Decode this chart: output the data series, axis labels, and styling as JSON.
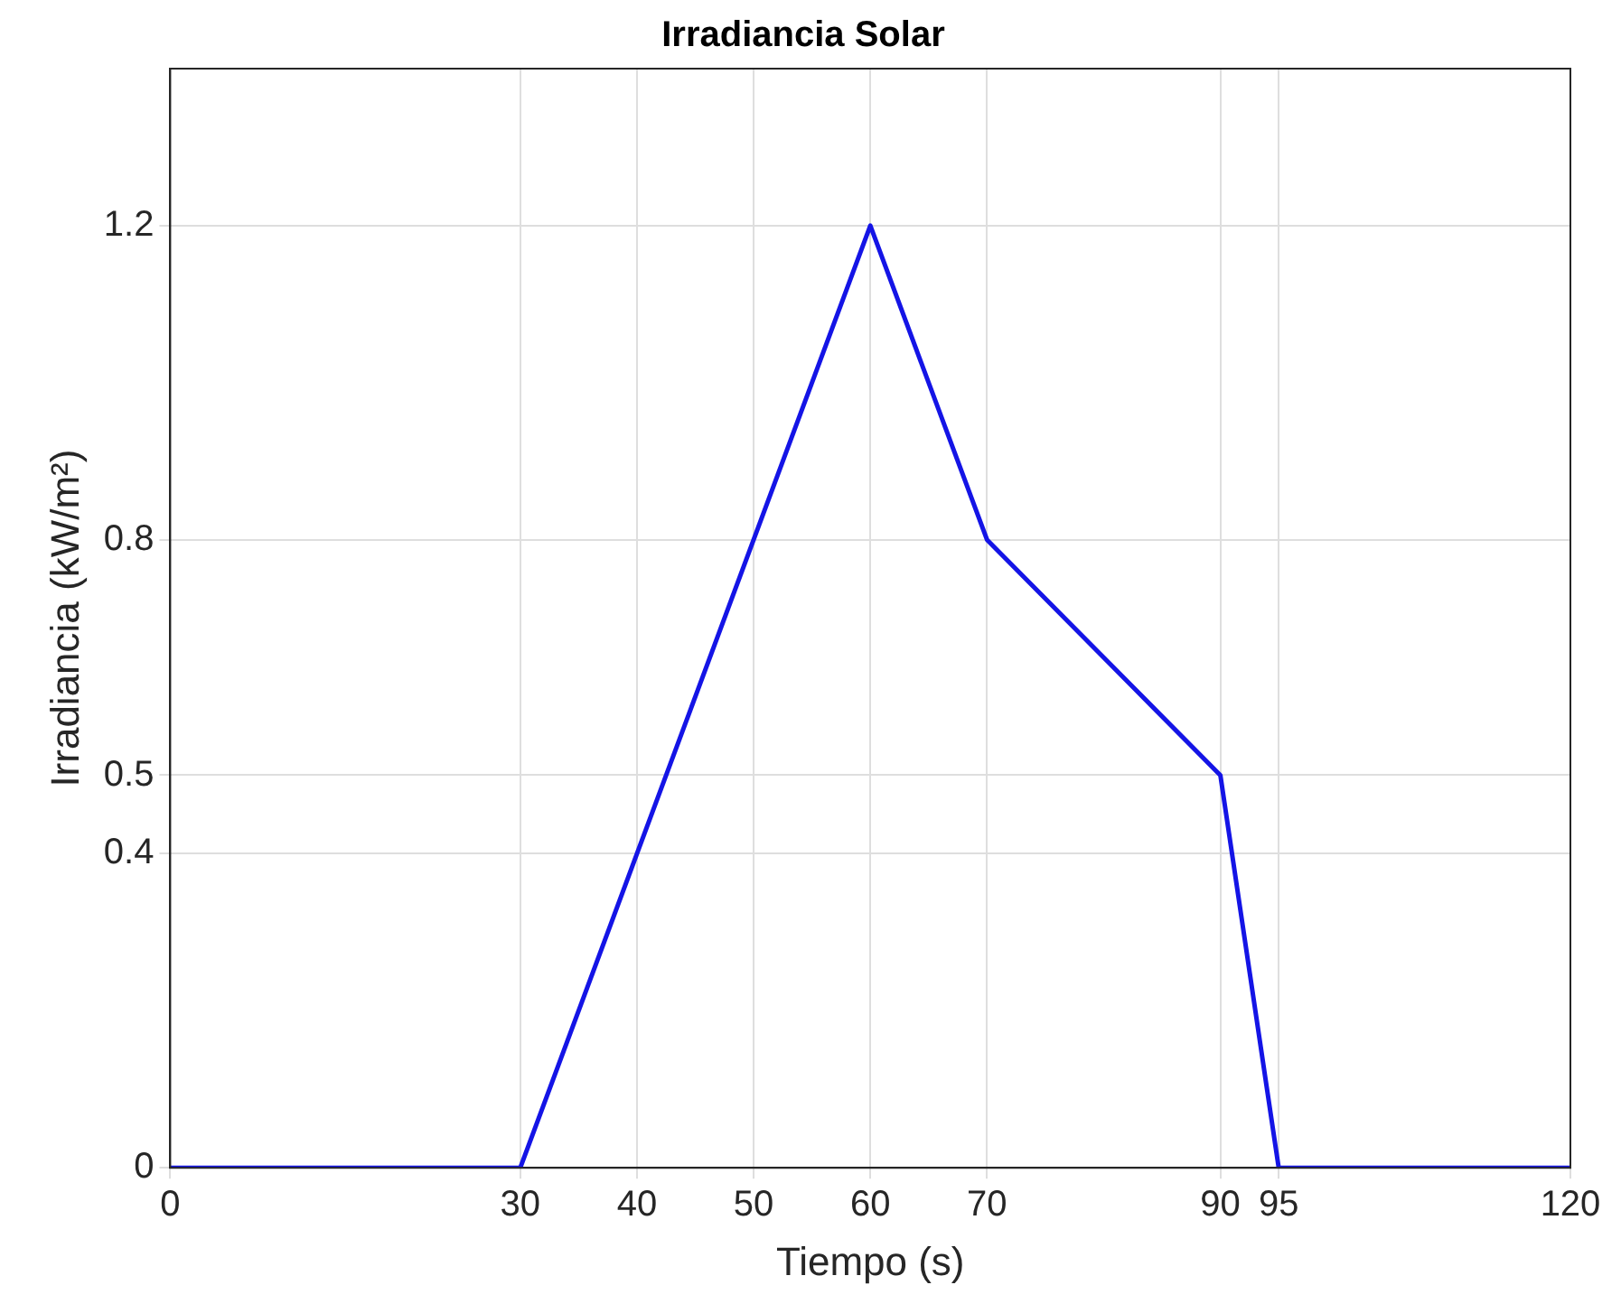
{
  "chart_data": {
    "type": "line",
    "title": "Irradiancia Solar",
    "xlabel": "Tiempo (s)",
    "ylabel": "Irradiancia (kW/m²)",
    "x": [
      0,
      30,
      40,
      50,
      60,
      70,
      90,
      95,
      120
    ],
    "series": [
      {
        "color": "#1414e6",
        "values": [
          0,
          0,
          0.4,
          0.8,
          1.2,
          0.8,
          0.5,
          0,
          0
        ]
      }
    ],
    "xlim": [
      0,
      120
    ],
    "xticks": [
      0,
      30,
      40,
      50,
      60,
      70,
      90,
      95,
      120
    ],
    "ylim": [
      0,
      1.4
    ],
    "yticks": [
      0,
      0.4,
      0.5,
      0.8,
      1.2
    ],
    "grid": true,
    "legend": false,
    "marker": "none",
    "line_style": "solid"
  }
}
